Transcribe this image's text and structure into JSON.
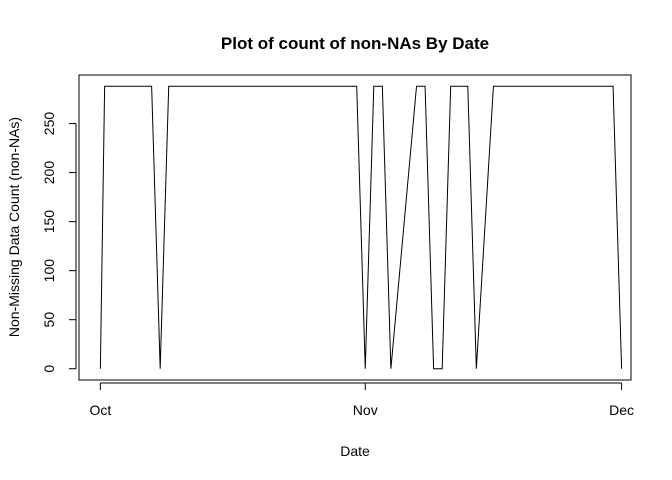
{
  "chart_data": {
    "type": "line",
    "title": "Plot of count of non-NAs By Date",
    "xlabel": "Date",
    "ylabel": "Non-Missing Data Count (non-NAs)",
    "x_ticks": [
      {
        "label": "Oct",
        "value": 0
      },
      {
        "label": "Nov",
        "value": 31
      },
      {
        "label": "Dec",
        "value": 61
      }
    ],
    "y_ticks": [
      0,
      50,
      100,
      150,
      200,
      250
    ],
    "xlim": [
      -2.5,
      62.1
    ],
    "ylim": [
      -11.5,
      299.5
    ],
    "series": [
      {
        "x": [
          0,
          0.5,
          6,
          7,
          8,
          30,
          31,
          32,
          33,
          34,
          37,
          38,
          39,
          40,
          41,
          43,
          44,
          46,
          47,
          60,
          61
        ],
        "y": [
          0,
          288,
          288,
          0,
          288,
          288,
          0,
          288,
          288,
          0,
          288,
          288,
          0,
          0,
          288,
          288,
          0,
          288,
          288,
          288,
          0
        ]
      }
    ]
  }
}
